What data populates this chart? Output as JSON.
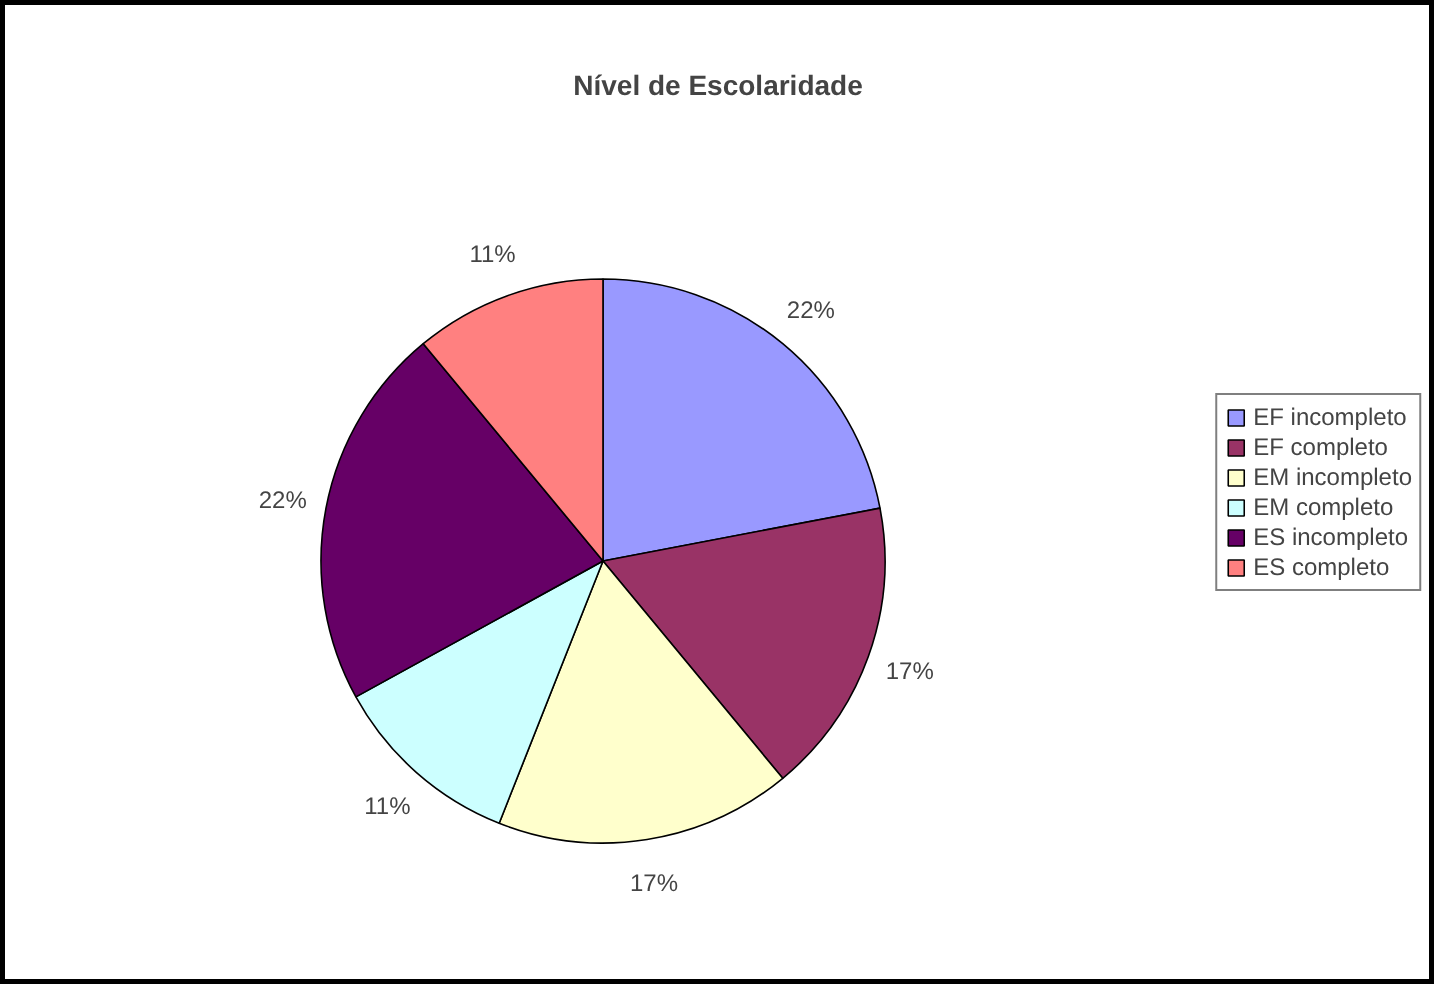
{
  "chart_data": {
    "type": "pie",
    "title": "Nível de Escolaridade",
    "categories": [
      "EF incompleto",
      "EF completo",
      "EM incompleto",
      "EM completo",
      "ES incompleto",
      "ES completo"
    ],
    "values": [
      22,
      17,
      17,
      11,
      22,
      11
    ],
    "colors": [
      "#9999ff",
      "#993366",
      "#ffffcc",
      "#ccffff",
      "#660066",
      "#ff8080"
    ],
    "value_labels": [
      "22%",
      "17%",
      "17%",
      "11%",
      "22%",
      "11%"
    ],
    "legend": "right"
  }
}
